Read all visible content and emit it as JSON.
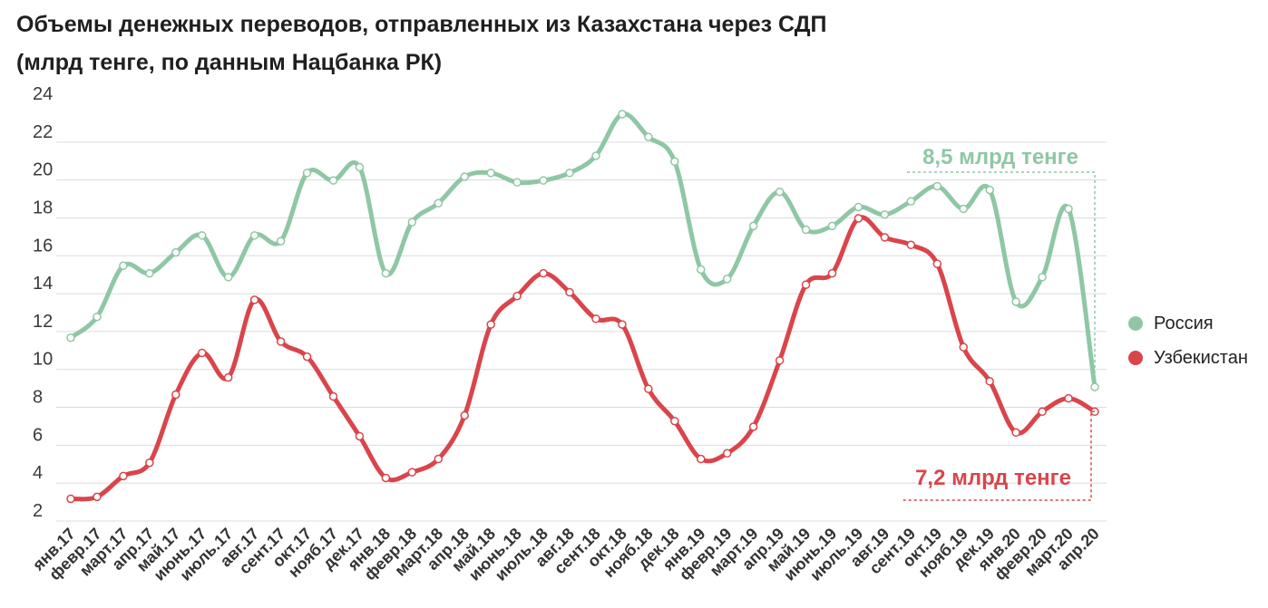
{
  "title": {
    "line1": "Объемы денежных переводов, отправленных из Казахстана через СДП",
    "line2": "(млрд тенге, по данным Нацбанка РК)"
  },
  "colors": {
    "russia": "#8fc7a5",
    "uzbekistan": "#d9454b",
    "grid": "#dcdcdc"
  },
  "legend": [
    {
      "name": "Россия",
      "color": "#8fc7a5"
    },
    {
      "name": "Узбекистан",
      "color": "#d9454b"
    }
  ],
  "callouts": {
    "russia": "8,5 млрд тенге",
    "uzbekistan": "7,2 млрд тенге"
  },
  "chart_data": {
    "type": "line",
    "ylim": [
      2,
      24
    ],
    "yticks": [
      2,
      4,
      6,
      8,
      10,
      12,
      14,
      16,
      18,
      20,
      22,
      24
    ],
    "grid": true,
    "legend_position": "right",
    "x": [
      "янв.17",
      "февр.17",
      "март.17",
      "апр.17",
      "май.17",
      "июнь.17",
      "июль.17",
      "авг.17",
      "сент.17",
      "окт.17",
      "нояб.17",
      "дек.17",
      "янв.18",
      "февр.18",
      "март.18",
      "апр.18",
      "май.18",
      "июнь.18",
      "июль.18",
      "авг.18",
      "сент.18",
      "окт.18",
      "нояб.18",
      "дек.18",
      "янв.19",
      "февр.19",
      "март.19",
      "апр.19",
      "май.19",
      "июнь.19",
      "июль.19",
      "авг.19",
      "сент.19",
      "окт.19",
      "нояб.19",
      "дек.19",
      "янв.20",
      "февр.20",
      "март.20",
      "апр.20"
    ],
    "series": [
      {
        "name": "Россия",
        "values": [
          11.1,
          12.2,
          14.9,
          14.5,
          15.6,
          16.5,
          14.3,
          16.5,
          16.2,
          19.8,
          19.4,
          20.1,
          14.5,
          17.2,
          18.2,
          19.6,
          19.8,
          19.3,
          19.4,
          19.8,
          20.7,
          22.9,
          21.7,
          20.4,
          14.7,
          14.2,
          17.0,
          18.8,
          16.8,
          17.0,
          18.0,
          17.6,
          18.3,
          19.1,
          17.9,
          18.9,
          13.0,
          14.3,
          17.9,
          8.5
        ]
      },
      {
        "name": "Узбекистан",
        "values": [
          2.6,
          2.7,
          3.8,
          4.5,
          8.1,
          10.3,
          9.0,
          13.1,
          10.9,
          10.1,
          8.0,
          5.9,
          3.7,
          4.0,
          4.7,
          7.0,
          11.8,
          13.3,
          14.5,
          13.5,
          12.1,
          11.8,
          8.4,
          6.7,
          4.7,
          5.0,
          6.4,
          9.9,
          13.9,
          14.5,
          17.4,
          16.4,
          16.0,
          15.0,
          10.6,
          8.8,
          6.1,
          7.2,
          7.9,
          7.2
        ]
      }
    ]
  }
}
